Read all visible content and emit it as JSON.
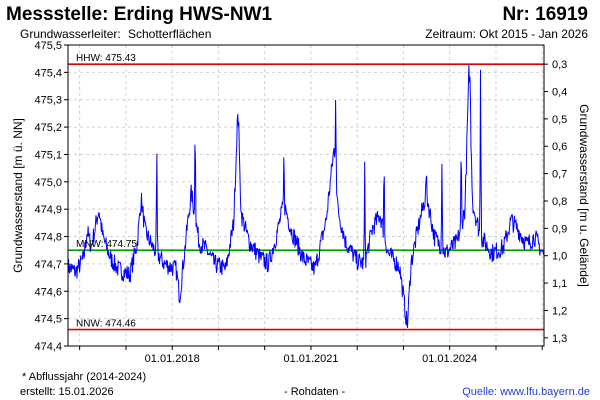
{
  "header": {
    "title": "Messstelle: Erding HWS-NW1",
    "number": "Nr: 16919",
    "aquifer_label": "Grundwasserleiter:",
    "aquifer_value": "Schotterflächen",
    "period": "Zeitraum: Okt 2015 - Jan 2026"
  },
  "footer": {
    "footnote": "* Abflussjahr (2014-2024)",
    "created": "erstellt:  15.01.2026",
    "rohdaten": "- Rohdaten -",
    "source": "Quelle:  www.lfu.bayern.de"
  },
  "chart_data": {
    "type": "line",
    "ylabel": "Grundwasserstand [m ü. NN]",
    "y2label": "Grundwasserstand [m u. Gelände]",
    "ylim": [
      474.4,
      475.5
    ],
    "y_ticks": [
      "474,4",
      "474,5",
      "474,6",
      "474,7",
      "474,8",
      "474,9",
      "475,0",
      "475,1",
      "475,2",
      "475,3",
      "475,4",
      "475,5"
    ],
    "y2_ticks": [
      "0,3",
      "0,4",
      "0,5",
      "0,6",
      "0,7",
      "0,8",
      "0,9",
      "1,0",
      "1,1",
      "1,2",
      "1,3"
    ],
    "y2_offset": 475.73,
    "x_range": [
      "2015-10-01",
      "2026-01-15"
    ],
    "x_ticks": [
      "01.01.2018",
      "01.01.2021",
      "01.01.2024"
    ],
    "grid": true,
    "colors": {
      "series": "#0000ff",
      "hhw": "#e00000",
      "nnw": "#e00000",
      "mnw": "#00a000",
      "grid": "#d0d0d0"
    },
    "reference_lines": [
      {
        "label": "HHW: 475.43",
        "value": 475.43,
        "color": "#e00000"
      },
      {
        "label": "MNW: 474.75",
        "value": 474.75,
        "color": "#00a000"
      },
      {
        "label": "NNW: 474.46",
        "value": 474.46,
        "color": "#e00000"
      }
    ],
    "series": [
      {
        "color": "#0000ff",
        "points": [
          [
            "2015-10-01",
            474.69
          ],
          [
            "2015-12-01",
            474.67
          ],
          [
            "2016-02-01",
            474.72
          ],
          [
            "2016-03-01",
            474.82
          ],
          [
            "2016-04-01",
            474.76
          ],
          [
            "2016-06-01",
            474.9
          ],
          [
            "2016-07-01",
            474.8
          ],
          [
            "2016-09-01",
            474.72
          ],
          [
            "2016-11-01",
            474.68
          ],
          [
            "2017-02-01",
            474.66
          ],
          [
            "2017-04-01",
            474.78
          ],
          [
            "2017-05-01",
            474.94
          ],
          [
            "2017-06-01",
            474.82
          ],
          [
            "2017-08-01",
            474.76
          ],
          [
            "2017-11-01",
            474.7
          ],
          [
            "2018-02-01",
            474.68
          ],
          [
            "2018-03-01",
            474.58
          ],
          [
            "2018-05-01",
            474.84
          ],
          [
            "2018-06-01",
            474.96
          ],
          [
            "2018-08-01",
            474.78
          ],
          [
            "2018-10-01",
            474.75
          ],
          [
            "2018-12-01",
            474.7
          ],
          [
            "2019-03-01",
            474.68
          ],
          [
            "2019-05-01",
            474.85
          ],
          [
            "2019-06-01",
            475.24
          ],
          [
            "2019-07-01",
            474.88
          ],
          [
            "2019-09-01",
            474.78
          ],
          [
            "2019-12-01",
            474.72
          ],
          [
            "2020-02-01",
            474.7
          ],
          [
            "2020-04-01",
            474.8
          ],
          [
            "2020-06-01",
            474.92
          ],
          [
            "2020-08-01",
            474.82
          ],
          [
            "2020-11-01",
            474.72
          ],
          [
            "2021-02-01",
            474.68
          ],
          [
            "2021-05-01",
            474.86
          ],
          [
            "2021-07-01",
            475.12
          ],
          [
            "2021-08-01",
            474.9
          ],
          [
            "2021-10-01",
            474.78
          ],
          [
            "2022-01-01",
            474.71
          ],
          [
            "2022-03-01",
            474.7
          ],
          [
            "2022-05-01",
            474.83
          ],
          [
            "2022-07-01",
            474.88
          ],
          [
            "2022-09-01",
            474.74
          ],
          [
            "2022-12-01",
            474.69
          ],
          [
            "2023-02-01",
            474.47
          ],
          [
            "2023-03-01",
            474.7
          ],
          [
            "2023-05-01",
            474.84
          ],
          [
            "2023-07-01",
            474.96
          ],
          [
            "2023-09-01",
            474.8
          ],
          [
            "2023-12-01",
            474.74
          ],
          [
            "2024-03-01",
            474.78
          ],
          [
            "2024-05-01",
            474.9
          ],
          [
            "2024-06-01",
            475.4
          ],
          [
            "2024-07-01",
            474.92
          ],
          [
            "2024-09-01",
            474.8
          ],
          [
            "2024-12-01",
            474.74
          ],
          [
            "2025-03-01",
            474.76
          ],
          [
            "2025-05-01",
            474.86
          ],
          [
            "2025-07-01",
            474.82
          ],
          [
            "2025-09-01",
            474.77
          ],
          [
            "2025-11-01",
            474.8
          ],
          [
            "2026-01-15",
            474.73
          ]
        ],
        "peaks": [
          [
            "2017-09-01",
            475.15
          ],
          [
            "2018-07-01",
            475.23
          ],
          [
            "2019-06-10",
            475.24
          ],
          [
            "2020-06-01",
            475.12
          ],
          [
            "2021-07-15",
            475.33
          ],
          [
            "2022-03-01",
            475.08
          ],
          [
            "2022-08-01",
            475.1
          ],
          [
            "2023-07-01",
            475.05
          ],
          [
            "2023-11-01",
            475.07
          ],
          [
            "2024-04-01",
            475.17
          ],
          [
            "2024-06-10",
            475.4
          ],
          [
            "2024-09-01",
            475.43
          ]
        ]
      }
    ]
  }
}
